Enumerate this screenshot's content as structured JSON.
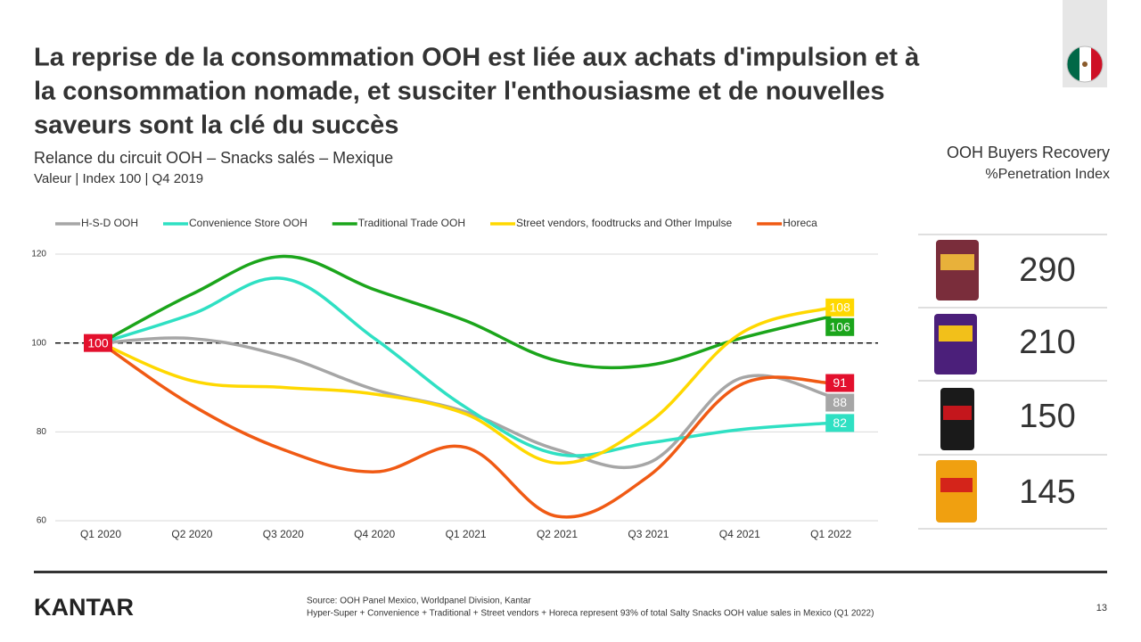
{
  "header": {
    "title_lines": [
      "La reprise de la consommation OOH est liée aux achats d'impulsion et à",
      "la consommation nomade, et susciter l'enthousiasme et de nouvelles",
      "saveurs sont la clé du succès"
    ],
    "subtitle": "Relance du circuit OOH – Snacks salés – Mexique",
    "subtitle2": "Valeur | Index 100 | Q4 2019"
  },
  "chart_data": {
    "type": "line",
    "smooth": true,
    "categories": [
      "Q1 2020",
      "Q2 2020",
      "Q3 2020",
      "Q4 2020",
      "Q1 2021",
      "Q2 2021",
      "Q3 2021",
      "Q4 2021",
      "Q1 2022"
    ],
    "series": [
      {
        "name": "H-S-D OOH",
        "color": "#a6a6a6",
        "values": [
          100,
          101,
          97,
          89.5,
          84.5,
          76,
          73,
          92,
          88
        ],
        "value_labels": [
          null,
          null,
          null,
          null,
          null,
          null,
          null,
          null,
          "88"
        ]
      },
      {
        "name": "Convenience Store OOH",
        "color": "#2fe0c3",
        "values": [
          100,
          106.5,
          114.5,
          101,
          85.5,
          75,
          77.5,
          80.5,
          82
        ],
        "value_labels": [
          null,
          null,
          null,
          null,
          null,
          null,
          null,
          null,
          "82"
        ]
      },
      {
        "name": "Traditional Trade OOH",
        "color": "#1ba51b",
        "values": [
          100,
          111,
          119.5,
          112,
          105,
          96,
          95,
          101,
          106
        ],
        "value_labels": [
          null,
          null,
          null,
          null,
          null,
          null,
          null,
          null,
          "106"
        ]
      },
      {
        "name": "Street vendors, foodtrucks and Other Impulse",
        "color": "#ffd800",
        "values": [
          100,
          91.5,
          90,
          88.5,
          84,
          73,
          82,
          102,
          108
        ],
        "value_labels": [
          null,
          null,
          null,
          null,
          null,
          null,
          null,
          null,
          "108"
        ]
      },
      {
        "name": "Horeca",
        "color": "#f05a14",
        "label_color": "#e3102d",
        "values": [
          100,
          86,
          76,
          71,
          76.5,
          61,
          70,
          90.5,
          91
        ],
        "value_labels": [
          "100",
          null,
          null,
          null,
          null,
          null,
          null,
          null,
          "91"
        ]
      }
    ],
    "ylim": [
      60,
      120
    ],
    "yticks": [
      60,
      80,
      100,
      120
    ],
    "grid": true,
    "reference_line": 100,
    "legend": "top"
  },
  "side_panel": {
    "title": "OOH Buyers Recovery",
    "subtitle": "%Penetration Index",
    "values": [
      "290",
      "210",
      "150",
      "145"
    ]
  },
  "footer": {
    "logo": "KANTAR",
    "source": "Source: OOH Panel Mexico, Worldpanel Division, Kantar",
    "note": "Hyper-Super + Convenience + Traditional + Street vendors + Horeca represent 93% of total Salty Snacks OOH  value sales in Mexico (Q1 2022)",
    "page": "13"
  }
}
